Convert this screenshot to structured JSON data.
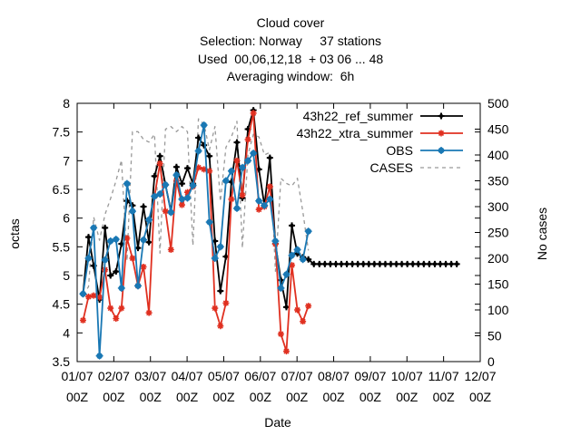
{
  "titles": [
    "Cloud cover",
    "Selection: Norway     37 stations",
    "Used  00,06,12,18  + 03 06 ... 48",
    "Averaging window:  6h"
  ],
  "colors": {
    "ref": "#000000",
    "xtra": "#e03020",
    "obs": "#1a78b4",
    "cases": "#999999"
  },
  "chart_data": {
    "type": "line",
    "xlabel": "Date",
    "ylabel": "octas",
    "y2label": "No cases",
    "x_ticks": [
      {
        "x": 0,
        "line1": "01/07",
        "line2": "00Z"
      },
      {
        "x": 1,
        "line1": "02/07",
        "line2": "00Z"
      },
      {
        "x": 2,
        "line1": "03/07",
        "line2": "00Z"
      },
      {
        "x": 3,
        "line1": "04/07",
        "line2": "00Z"
      },
      {
        "x": 4,
        "line1": "05/07",
        "line2": "00Z"
      },
      {
        "x": 5,
        "line1": "06/07",
        "line2": "00Z"
      },
      {
        "x": 6,
        "line1": "07/07",
        "line2": "00Z"
      },
      {
        "x": 7,
        "line1": "08/07",
        "line2": "00Z"
      },
      {
        "x": 8,
        "line1": "09/07",
        "line2": "00Z"
      },
      {
        "x": 9,
        "line1": "10/07",
        "line2": "00Z"
      },
      {
        "x": 10,
        "line1": "11/07",
        "line2": "00Z"
      },
      {
        "x": 11,
        "line1": "12/07",
        "line2": "00Z"
      }
    ],
    "xlim": [
      0,
      11
    ],
    "ylim": [
      3.5,
      8
    ],
    "yticks": [
      "3.5",
      "4",
      "4.5",
      "5",
      "5.5",
      "6",
      "6.5",
      "7",
      "7.5",
      "8"
    ],
    "y2lim": [
      0,
      500
    ],
    "y2ticks": [
      "0",
      "50",
      "100",
      "150",
      "200",
      "250",
      "300",
      "350",
      "400",
      "450",
      "500"
    ],
    "grid": false,
    "legend_position": "top-right",
    "series": [
      {
        "name": "43h22_ref_summer",
        "color_key": "ref",
        "marker": "plus",
        "axis": "y1",
        "x": [
          0.16,
          0.31,
          0.45,
          0.61,
          0.76,
          0.91,
          1.06,
          1.21,
          1.36,
          1.51,
          1.66,
          1.81,
          1.96,
          2.11,
          2.26,
          2.41,
          2.56,
          2.71,
          2.86,
          3.01,
          3.16,
          3.31,
          3.46,
          3.61,
          3.76,
          3.91,
          4.06,
          4.21,
          4.36,
          4.51,
          4.66,
          4.81,
          4.96,
          5.11,
          5.26,
          5.41,
          5.56,
          5.71,
          5.86,
          6.01,
          6.16,
          6.31,
          6.46,
          6.61,
          6.76,
          6.91,
          7.06,
          7.21,
          7.36,
          7.51,
          7.66,
          7.81,
          7.96,
          8.11,
          8.26,
          8.41,
          8.56,
          8.71,
          8.86,
          9.01,
          9.16,
          9.31,
          9.46,
          9.61,
          9.76,
          9.91,
          10.06,
          10.21,
          10.36
        ],
        "values": [
          4.68,
          5.67,
          5.17,
          4.58,
          5.83,
          5.0,
          5.07,
          5.55,
          6.3,
          6.22,
          5.48,
          6.2,
          5.58,
          6.73,
          7.08,
          6.58,
          6.12,
          6.89,
          6.6,
          6.87,
          6.6,
          7.4,
          7.27,
          7.08,
          5.6,
          4.73,
          5.33,
          6.63,
          7.32,
          6.35,
          7.55,
          7.88,
          6.85,
          6.22,
          7.05,
          5.55,
          4.92,
          4.45,
          5.87,
          5.38,
          5.32,
          5.28,
          5.2,
          5.2,
          5.2,
          5.2,
          5.2,
          5.2,
          5.2,
          5.2,
          5.2,
          5.2,
          5.2,
          5.2,
          5.2,
          5.2,
          5.2,
          5.2,
          5.2,
          5.2,
          5.2,
          5.2,
          5.2,
          5.2,
          5.2,
          5.2,
          5.2,
          5.2,
          5.2
        ]
      },
      {
        "name": "43h22_xtra_summer",
        "color_key": "xtra",
        "marker": "star",
        "axis": "y1",
        "x": [
          0.16,
          0.31,
          0.45,
          0.61,
          0.76,
          0.91,
          1.06,
          1.21,
          1.36,
          1.51,
          1.66,
          1.81,
          1.96,
          2.11,
          2.26,
          2.41,
          2.56,
          2.71,
          2.86,
          3.01,
          3.16,
          3.31,
          3.46,
          3.61,
          3.76,
          3.91,
          4.06,
          4.21,
          4.36,
          4.51,
          4.66,
          4.81,
          4.96,
          5.11,
          5.26,
          5.41,
          5.56,
          5.71,
          5.86,
          6.01,
          6.16,
          6.31
        ],
        "values": [
          4.22,
          4.63,
          4.65,
          4.62,
          5.1,
          4.43,
          4.25,
          4.43,
          5.65,
          5.3,
          4.82,
          5.15,
          4.35,
          6.38,
          6.95,
          6.12,
          5.45,
          6.65,
          6.23,
          6.45,
          6.55,
          6.88,
          6.85,
          6.82,
          4.43,
          4.12,
          4.52,
          6.33,
          7.0,
          6.4,
          7.37,
          7.83,
          6.15,
          6.2,
          6.55,
          5.55,
          3.98,
          3.68,
          5.18,
          4.4,
          4.2,
          4.47
        ]
      },
      {
        "name": "OBS",
        "color_key": "obs",
        "marker": "circle",
        "axis": "y1",
        "x": [
          0.16,
          0.31,
          0.45,
          0.61,
          0.76,
          0.91,
          1.06,
          1.21,
          1.36,
          1.51,
          1.66,
          1.81,
          1.96,
          2.11,
          2.26,
          2.41,
          2.56,
          2.71,
          2.86,
          3.01,
          3.16,
          3.31,
          3.46,
          3.61,
          3.76,
          3.91,
          4.06,
          4.21,
          4.36,
          4.51,
          4.66,
          4.81,
          4.96,
          5.11,
          5.26,
          5.41,
          5.56,
          5.71,
          5.86,
          6.01,
          6.16,
          6.31
        ],
        "values": [
          4.68,
          5.3,
          5.83,
          3.6,
          5.27,
          5.6,
          5.63,
          4.78,
          6.6,
          6.12,
          4.82,
          5.62,
          5.97,
          6.38,
          6.42,
          6.58,
          6.1,
          6.75,
          6.33,
          6.35,
          6.57,
          7.17,
          7.62,
          5.93,
          5.3,
          5.5,
          6.65,
          6.82,
          6.17,
          6.88,
          7.0,
          7.13,
          6.3,
          6.22,
          6.33,
          5.6,
          4.78,
          5.02,
          5.35,
          5.45,
          5.28,
          5.77
        ]
      },
      {
        "name": "CASES",
        "color_key": "cases",
        "marker": "none",
        "dashed": true,
        "axis": "y2",
        "x": [
          0.16,
          0.31,
          0.45,
          0.61,
          0.76,
          0.91,
          1.06,
          1.21,
          1.36,
          1.51,
          1.66,
          1.81,
          1.96,
          2.11,
          2.26,
          2.41,
          2.56,
          2.71,
          2.86,
          3.01,
          3.16,
          3.31,
          3.46,
          3.61,
          3.76,
          3.91,
          4.06,
          4.21,
          4.36,
          4.51,
          4.66,
          4.81,
          4.96,
          5.11,
          5.26,
          5.41,
          5.56,
          5.71,
          5.86,
          6.01,
          6.16,
          6.31
        ],
        "values": [
          130,
          145,
          280,
          235,
          285,
          315,
          350,
          390,
          195,
          445,
          445,
          430,
          425,
          440,
          210,
          450,
          455,
          445,
          455,
          445,
          225,
          470,
          460,
          410,
          455,
          310,
          415,
          435,
          465,
          220,
          400,
          440,
          435,
          400,
          405,
          175,
          355,
          345,
          340,
          355,
          290,
          215
        ]
      }
    ]
  }
}
